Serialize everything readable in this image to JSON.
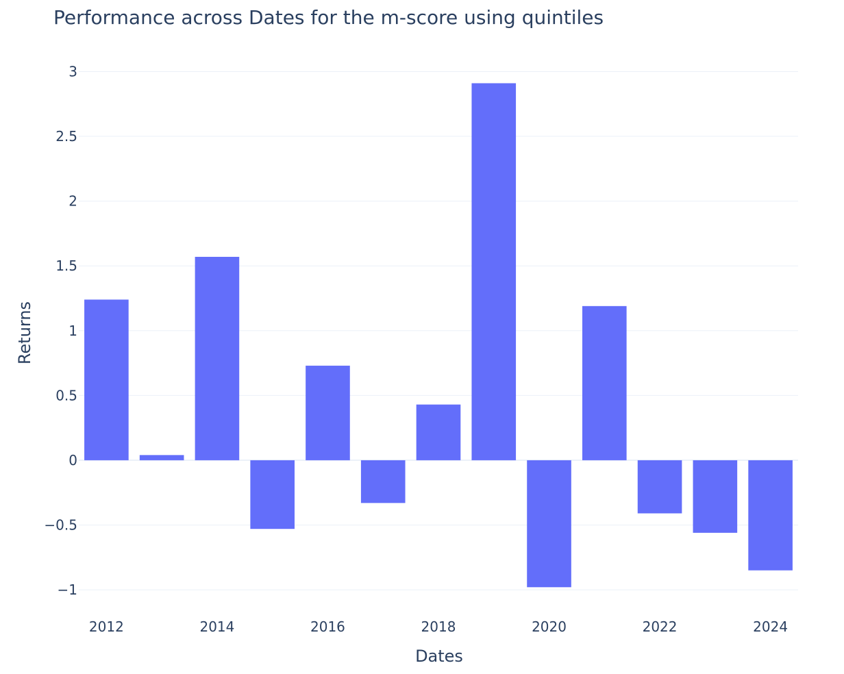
{
  "chart_data": {
    "type": "bar",
    "title": "Performance across Dates for the m-score using quintiles",
    "xlabel": "Dates",
    "ylabel": "Returns",
    "x": [
      2012,
      2013,
      2014,
      2015,
      2016,
      2017,
      2018,
      2019,
      2020,
      2021,
      2022,
      2023,
      2024
    ],
    "values": [
      1.24,
      0.04,
      1.57,
      -0.53,
      0.73,
      -0.33,
      0.43,
      2.91,
      -0.98,
      1.19,
      -0.41,
      -0.56,
      -0.85
    ],
    "xlim": [
      2011.5,
      2024.5
    ],
    "ylim": [
      -1.1,
      3.14
    ],
    "y_ticks": [
      {
        "value": -1,
        "label": "−1"
      },
      {
        "value": -0.5,
        "label": "−0.5"
      },
      {
        "value": 0,
        "label": "0"
      },
      {
        "value": 0.5,
        "label": "0.5"
      },
      {
        "value": 1,
        "label": "1"
      },
      {
        "value": 1.5,
        "label": "1.5"
      },
      {
        "value": 2,
        "label": "2"
      },
      {
        "value": 2.5,
        "label": "2.5"
      },
      {
        "value": 3,
        "label": "3"
      }
    ],
    "x_ticks": [
      {
        "value": 2012,
        "label": "2012"
      },
      {
        "value": 2014,
        "label": "2014"
      },
      {
        "value": 2016,
        "label": "2016"
      },
      {
        "value": 2018,
        "label": "2018"
      },
      {
        "value": 2020,
        "label": "2020"
      },
      {
        "value": 2022,
        "label": "2022"
      },
      {
        "value": 2024,
        "label": "2024"
      }
    ],
    "grid": true,
    "legend": "none",
    "colors": {
      "bar": "#636efa",
      "grid": "#ebf0f8",
      "zeroline": "#ebf0f8",
      "text": "#2a3f5f",
      "background": "#ffffff"
    }
  }
}
